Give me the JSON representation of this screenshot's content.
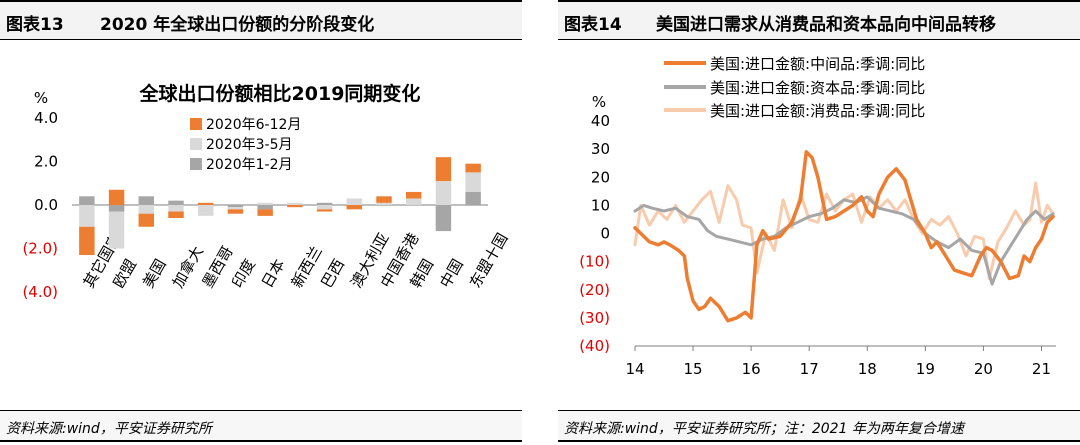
{
  "left": {
    "figure_num": "图表13",
    "figure_title": "2020 年全球出口份额的分阶段变化",
    "source": "资料来源:wind，平安证券研究所"
  },
  "right": {
    "figure_num": "图表14",
    "figure_title": "美国进口需求从消费品和资本品向中间品转移",
    "source": "资料来源:wind，平安证券研究所；注：2021 年为两年复合增速"
  },
  "colors": {
    "orange": "#ed7d31",
    "lightgray": "#d9d9d9",
    "gray": "#a6a6a6",
    "peach": "#f8cbad",
    "negative": "#e00000"
  },
  "chart_data": [
    {
      "type": "bar",
      "stacked": true,
      "title": "全球出口份额相比2019同期变化",
      "ylabel": "%",
      "ylim": [
        -4.0,
        4.0
      ],
      "yticks": [
        4.0,
        2.0,
        0.0,
        -2.0,
        -4.0
      ],
      "ytick_labels": [
        "4.0",
        "2.0",
        "0.0",
        "(2.0)",
        "(4.0)"
      ],
      "categories": [
        "其它国家",
        "欧盟",
        "美国",
        "加拿大",
        "墨西哥",
        "印度",
        "日本",
        "新西兰",
        "巴西",
        "澳大利亚",
        "中国香港",
        "韩国",
        "中国",
        "东盟十国"
      ],
      "series": [
        {
          "name": "2020年6-12月",
          "color": "#ed7d31",
          "values": [
            -1.3,
            0.7,
            -0.6,
            -0.3,
            0.1,
            -0.2,
            -0.3,
            -0.1,
            -0.1,
            -0.2,
            0.3,
            0.3,
            1.1,
            0.4
          ]
        },
        {
          "name": "2020年3-5月",
          "color": "#d9d9d9",
          "values": [
            -1.0,
            -1.7,
            -0.4,
            -0.3,
            -0.5,
            -0.1,
            0.1,
            0.1,
            -0.2,
            0.3,
            0.1,
            0.3,
            1.1,
            0.9
          ]
        },
        {
          "name": "2020年1-2月",
          "color": "#a6a6a6",
          "values": [
            0.4,
            -0.3,
            0.4,
            0.2,
            0.0,
            -0.1,
            -0.2,
            0.0,
            0.1,
            0.0,
            0.0,
            0.0,
            -1.2,
            0.6
          ]
        }
      ],
      "legend": [
        "2020年6-12月",
        "2020年3-5月",
        "2020年1-2月"
      ]
    },
    {
      "type": "line",
      "ylabel": "%",
      "ylim": [
        -40,
        40
      ],
      "yticks": [
        40,
        30,
        20,
        10,
        0,
        -10,
        -20,
        -30,
        -40
      ],
      "ytick_labels": [
        "40",
        "30",
        "20",
        "10",
        "0",
        "(10)",
        "(20)",
        "(30)",
        "(40)"
      ],
      "xlim": [
        14,
        21.25
      ],
      "xticks": [
        14,
        15,
        16,
        17,
        18,
        19,
        20,
        21
      ],
      "xtick_labels": [
        "14",
        "15",
        "16",
        "17",
        "18",
        "19",
        "20",
        "21"
      ],
      "series": [
        {
          "name": "美国:进口金额:中间品:季调:同比",
          "color": "#ed7d31",
          "x": [
            14.0,
            14.1,
            14.25,
            14.4,
            14.5,
            14.6,
            14.75,
            14.85,
            14.9,
            15.0,
            15.1,
            15.2,
            15.3,
            15.45,
            15.6,
            15.75,
            15.9,
            16.0,
            16.1,
            16.2,
            16.3,
            16.5,
            16.7,
            16.85,
            16.95,
            17.05,
            17.15,
            17.3,
            17.45,
            17.6,
            17.75,
            17.9,
            18.0,
            18.1,
            18.2,
            18.35,
            18.5,
            18.65,
            18.75,
            18.85,
            19.0,
            19.1,
            19.2,
            19.35,
            19.5,
            19.65,
            19.8,
            19.95,
            20.05,
            20.15,
            20.3,
            20.45,
            20.6,
            20.7,
            20.8,
            20.9,
            21.0,
            21.1,
            21.2
          ],
          "y": [
            2,
            0,
            -3,
            -4,
            -3,
            -4,
            -6,
            -8,
            -16,
            -24,
            -27,
            -26,
            -23,
            -26,
            -31,
            -30,
            -28,
            -30,
            -4,
            1,
            -2,
            -1,
            4,
            12,
            29,
            27,
            20,
            5,
            6,
            8,
            10,
            13,
            8,
            6,
            14,
            20,
            23,
            19,
            12,
            5,
            0,
            -5,
            -3,
            -8,
            -13,
            -14,
            -15,
            -8,
            -5,
            -6,
            -10,
            -16,
            -15,
            -8,
            -10,
            -5,
            -2,
            4,
            6
          ]
        },
        {
          "name": "美国:进口金额:资本品:季调:同比",
          "color": "#a6a6a6",
          "x": [
            14.0,
            14.15,
            14.3,
            14.5,
            14.7,
            14.9,
            15.1,
            15.25,
            15.4,
            15.6,
            15.8,
            16.0,
            16.2,
            16.4,
            16.6,
            16.8,
            17.0,
            17.2,
            17.4,
            17.6,
            17.8,
            18.0,
            18.2,
            18.4,
            18.6,
            18.8,
            19.0,
            19.2,
            19.4,
            19.6,
            19.8,
            20.0,
            20.15,
            20.3,
            20.45,
            20.6,
            20.75,
            20.9,
            21.05,
            21.2
          ],
          "y": [
            8,
            10,
            9,
            8,
            9,
            6,
            5,
            1,
            -1,
            -2,
            -3,
            -4,
            -2,
            -1,
            2,
            4,
            6,
            7,
            9,
            12,
            11,
            13,
            9,
            8,
            7,
            5,
            0,
            -3,
            -5,
            -2,
            -6,
            -7,
            -18,
            -10,
            -5,
            0,
            5,
            8,
            5,
            7
          ]
        },
        {
          "name": "美国:进口金额:消费品:季调:同比",
          "color": "#f8cbad",
          "x": [
            14.0,
            14.1,
            14.25,
            14.4,
            14.55,
            14.7,
            14.85,
            15.0,
            15.15,
            15.3,
            15.45,
            15.6,
            15.75,
            15.85,
            16.0,
            16.1,
            16.25,
            16.4,
            16.55,
            16.7,
            16.85,
            17.0,
            17.15,
            17.3,
            17.45,
            17.6,
            17.75,
            17.9,
            18.05,
            18.2,
            18.35,
            18.5,
            18.65,
            18.8,
            18.95,
            19.1,
            19.25,
            19.4,
            19.55,
            19.7,
            19.85,
            20.0,
            20.1,
            20.25,
            20.4,
            20.55,
            20.7,
            20.8,
            20.9,
            21.0,
            21.1,
            21.2
          ],
          "y": [
            -4,
            10,
            3,
            8,
            5,
            10,
            4,
            8,
            12,
            15,
            4,
            17,
            12,
            3,
            2,
            -14,
            0,
            -6,
            12,
            2,
            14,
            5,
            4,
            14,
            8,
            12,
            14,
            4,
            13,
            9,
            12,
            8,
            12,
            5,
            0,
            5,
            3,
            6,
            0,
            -8,
            -1,
            -2,
            -16,
            -3,
            2,
            8,
            3,
            5,
            18,
            4,
            10,
            7
          ]
        }
      ],
      "legend": [
        "美国:进口金额:中间品:季调:同比",
        "美国:进口金额:资本品:季调:同比",
        "美国:进口金额:消费品:季调:同比"
      ]
    }
  ]
}
